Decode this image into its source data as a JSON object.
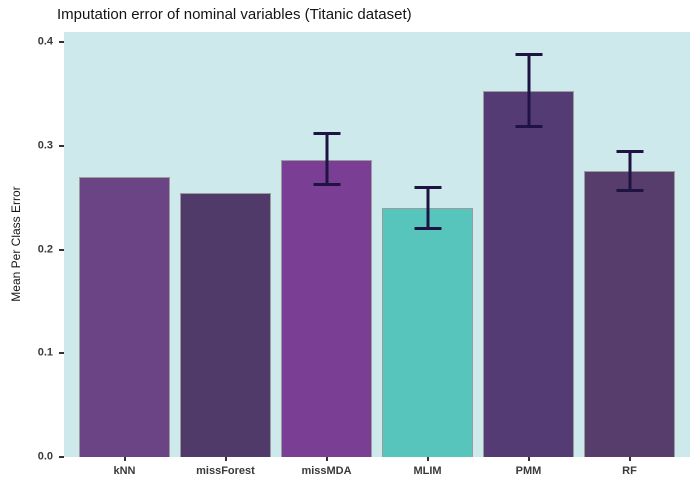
{
  "chart_data": {
    "type": "bar",
    "title": "Imputation error of nominal variables (Titanic dataset)",
    "ylabel": "Mean Per Class Error",
    "xlabel": "",
    "categories": [
      "kNN",
      "missForest",
      "missMDA",
      "MLIM",
      "PMM",
      "RF"
    ],
    "values": [
      0.27,
      0.255,
      0.287,
      0.24,
      0.353,
      0.276
    ],
    "error_bars": [
      null,
      null,
      {
        "low": 0.261,
        "high": 0.314
      },
      {
        "low": 0.219,
        "high": 0.261
      },
      {
        "low": 0.317,
        "high": 0.39
      },
      {
        "low": 0.256,
        "high": 0.296
      }
    ],
    "bar_colors": [
      "#6a4484",
      "#503a69",
      "#7a3e95",
      "#58c5bc",
      "#553b74",
      "#563d6b"
    ],
    "bar_border_color": "#9c9c9c",
    "error_bar_color": "#1e1343",
    "panel_background": "#cee9eb",
    "outer_background": "#ffffff",
    "ylim": [
      0,
      0.41
    ],
    "yticks": [
      {
        "label": "0.0",
        "value": 0.0
      },
      {
        "label": "0.1",
        "value": 0.1
      },
      {
        "label": "0.2",
        "value": 0.2
      },
      {
        "label": "0.3",
        "value": 0.3
      },
      {
        "label": "0.4",
        "value": 0.4
      }
    ],
    "grid": "off",
    "legend": "none"
  }
}
